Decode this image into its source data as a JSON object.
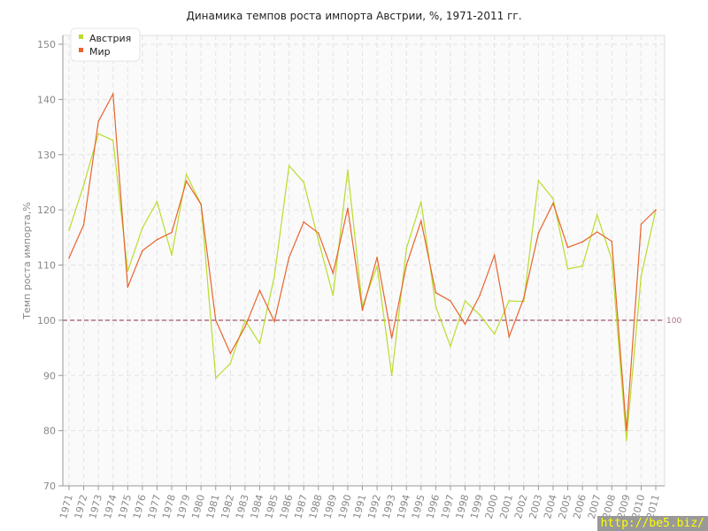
{
  "chart_data": {
    "type": "line",
    "title": "Динамика темпов роста импорта Австрии, %, 1971-2011 гг.",
    "xlabel": "",
    "ylabel": "Темп роста импорта,%",
    "ylim": [
      70,
      150
    ],
    "yticks": [
      70,
      80,
      90,
      100,
      110,
      120,
      130,
      140,
      150
    ],
    "grid": true,
    "legend_position": "top-left",
    "x": [
      "1971",
      "1972",
      "1973",
      "1974",
      "1975",
      "1976",
      "1977",
      "1978",
      "1979",
      "1980",
      "1981",
      "1982",
      "1983",
      "1984",
      "1985",
      "1986",
      "1987",
      "1988",
      "1989",
      "1990",
      "1991",
      "1992",
      "1993",
      "1994",
      "1995",
      "1996",
      "1997",
      "1998",
      "1999",
      "2000",
      "2001",
      "2002",
      "2003",
      "2004",
      "2005",
      "2006",
      "2007",
      "2008",
      "2009",
      "2010",
      "2011"
    ],
    "series": [
      {
        "name": "Австрия",
        "color": "#b9dd2c",
        "values": [
          116.3,
          124.5,
          133.8,
          132.6,
          108.9,
          116.7,
          121.5,
          111.8,
          126.4,
          121,
          89.5,
          92.2,
          100,
          95.8,
          108,
          128,
          125,
          114.5,
          104.5,
          127.2,
          102.5,
          109.8,
          90,
          113,
          121.5,
          102.5,
          95.3,
          103.5,
          101,
          97.5,
          103.5,
          103.4,
          125.3,
          122,
          109.3,
          109.8,
          119.1,
          111,
          78.2,
          108,
          120
        ]
      },
      {
        "name": "Мир",
        "color": "#e8642c",
        "values": [
          111.3,
          117.3,
          136,
          141,
          106,
          112.6,
          114.6,
          115.9,
          125.2,
          121,
          100,
          94,
          98.8,
          105.4,
          99.8,
          111.4,
          117.8,
          115.8,
          108.5,
          120.3,
          101.8,
          111.4,
          96.8,
          110,
          118,
          105,
          103.5,
          99.3,
          104.5,
          111.8,
          97,
          104,
          115.8,
          121.2,
          113.2,
          114.2,
          116,
          114.3,
          80,
          117.4,
          120
        ]
      }
    ],
    "reference_line": {
      "value": 100,
      "label": "100",
      "color": "#b07080"
    }
  },
  "watermark": "http://be5.biz/"
}
